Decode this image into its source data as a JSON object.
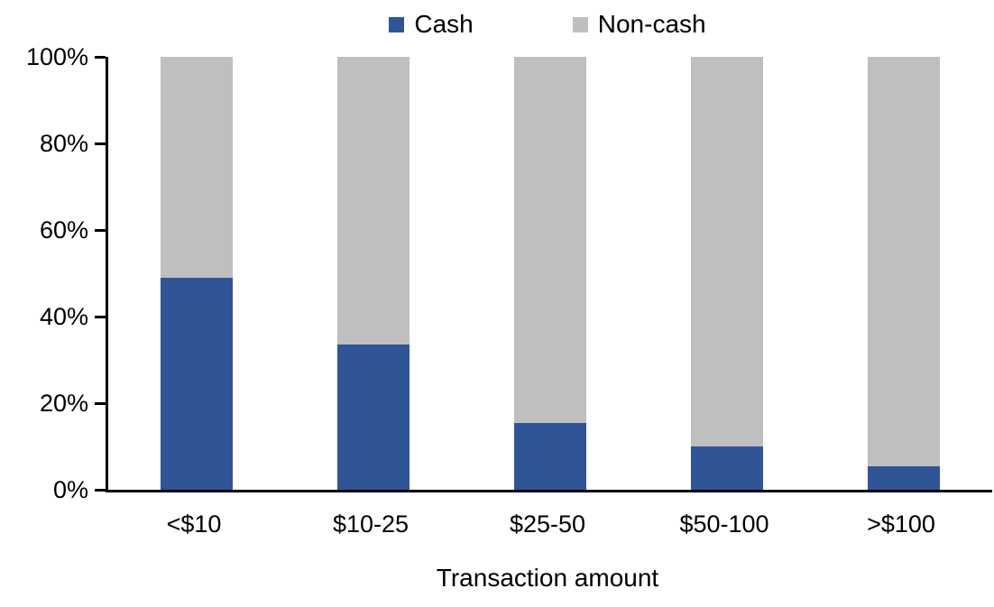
{
  "chart_data": {
    "type": "bar",
    "stacked": true,
    "percent_stacked": true,
    "title": "",
    "xlabel": "Transaction amount",
    "ylabel": "",
    "categories": [
      "<$10",
      "$10-25",
      "$25-50",
      "$50-100",
      ">$100"
    ],
    "series": [
      {
        "name": "Cash",
        "color": "#2F5597",
        "values": [
          49,
          33.5,
          15.5,
          10,
          5.5
        ]
      },
      {
        "name": "Non-cash",
        "color": "#BFBFBF",
        "values": [
          51,
          66.5,
          84.5,
          90,
          94.5
        ]
      }
    ],
    "ylim": [
      0,
      100
    ],
    "yticks": [
      {
        "value": 0,
        "label": "0%"
      },
      {
        "value": 20,
        "label": "20%"
      },
      {
        "value": 40,
        "label": "40%"
      },
      {
        "value": 60,
        "label": "60%"
      },
      {
        "value": 80,
        "label": "80%"
      },
      {
        "value": 100,
        "label": "100%"
      }
    ],
    "grid": false,
    "legend_position": "top-center",
    "axis_color": "#000000",
    "background_color": "#FFFFFF"
  }
}
